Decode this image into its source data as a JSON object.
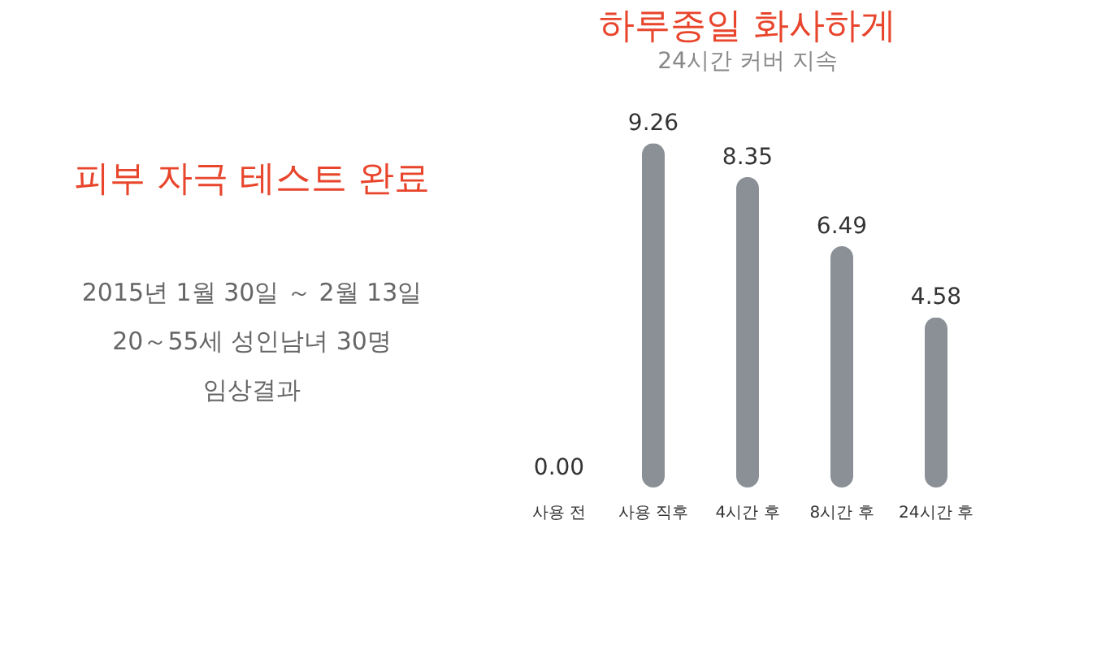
{
  "chart_data": {
    "type": "bar",
    "title": "하루종일 화사하게",
    "subtitle": "24시간 커버 지속",
    "categories": [
      "사용 전",
      "사용 직후",
      "4시간 후",
      "8시간 후",
      "24시간 후"
    ],
    "values": [
      0.0,
      9.26,
      8.35,
      6.49,
      4.58
    ],
    "color": "#8a9096",
    "annotations": [
      "피부 자극 테스트 완료",
      "2015년 1월 30일 ～ 2월 13일",
      "20～55세 성인남녀 30명",
      "임상결과"
    ],
    "value_labels": [
      "0.00",
      "9.26",
      "8.35",
      "6.49",
      "4.58"
    ]
  }
}
